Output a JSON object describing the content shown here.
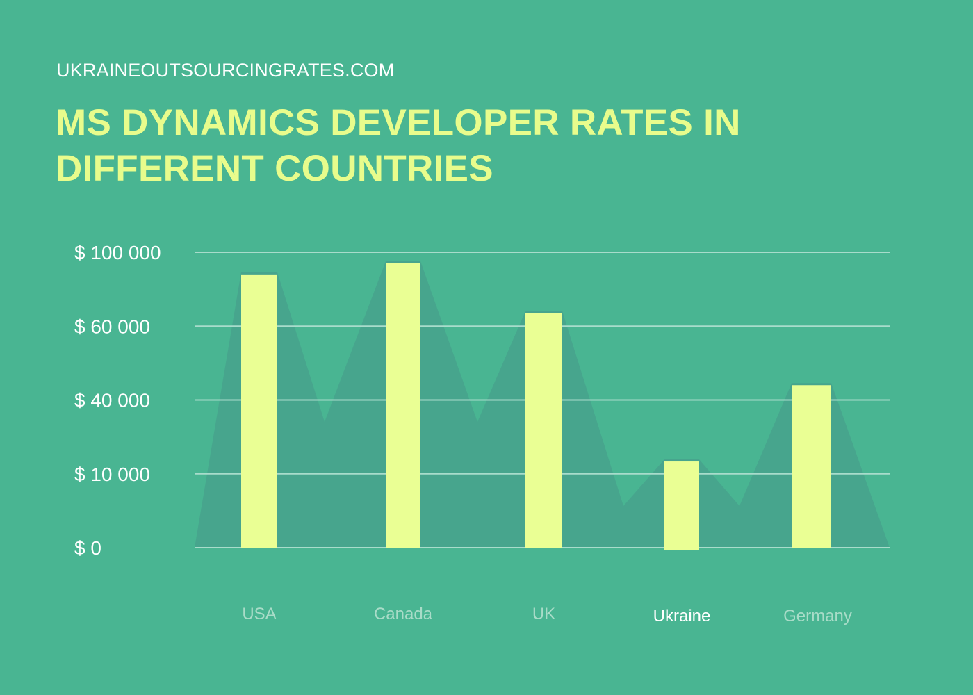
{
  "site": "UKRAINEOUTSOURCINGRATES.COM",
  "chart_data": {
    "type": "bar",
    "title": "MS DYNAMICS DEVELOPER RATES IN DIFFERENT COUNTRIES",
    "categories": [
      "USA",
      "Canada",
      "UK",
      "Ukraine",
      "Germany"
    ],
    "values": [
      88000,
      94000,
      67000,
      15000,
      44000
    ],
    "y_ticks": [
      0,
      10000,
      40000,
      60000,
      100000
    ],
    "y_tick_labels": [
      "$ 0",
      "$ 10 000",
      "$ 40 000",
      "$ 60 000",
      "$ 100 000"
    ],
    "ylim": [
      0,
      100000
    ],
    "grid": true,
    "highlighted_category": "Ukraine",
    "colors": {
      "background": "#49b592",
      "bar": "#eaff94",
      "area": "#47a58d",
      "title": "#e8fc8c",
      "grid": "#a8dccb",
      "label": "#a9dcc8",
      "highlight_label": "#ffffff"
    }
  }
}
